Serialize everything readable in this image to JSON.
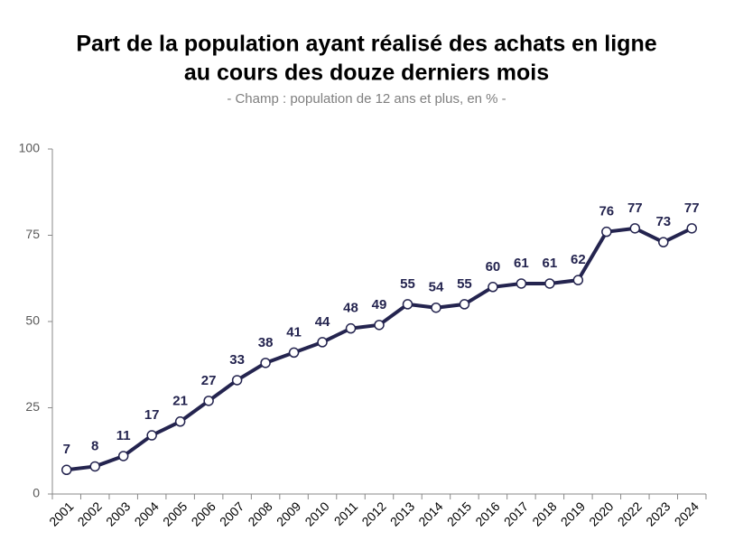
{
  "chart_data": {
    "type": "line",
    "title": [
      "Part de la population ayant réalisé des achats en ligne",
      "au cours des douze derniers mois"
    ],
    "subtitle": "- Champ : population de 12 ans et plus, en % -",
    "categories": [
      "2001",
      "2002",
      "2003",
      "2004",
      "2005",
      "2006",
      "2007",
      "2008",
      "2009",
      "2010",
      "2011",
      "2012",
      "2013",
      "2014",
      "2015",
      "2016",
      "2017",
      "2018",
      "2019",
      "2020",
      "2022",
      "2023",
      "2024"
    ],
    "values": [
      7,
      8,
      11,
      17,
      21,
      27,
      33,
      38,
      41,
      44,
      48,
      49,
      55,
      54,
      55,
      60,
      61,
      61,
      62,
      76,
      77,
      73,
      77
    ],
    "color": "#24244f",
    "ylim": [
      0,
      100
    ],
    "yticks": [
      0,
      25,
      50,
      75,
      100
    ],
    "grid": false
  }
}
